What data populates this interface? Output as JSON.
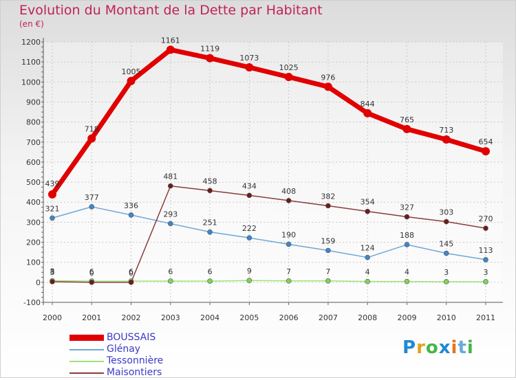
{
  "chart_data": {
    "type": "line",
    "title": "Evolution du Montant de la Dette par Habitant",
    "subtitle": "(en €)",
    "categories": [
      "2000",
      "2001",
      "2002",
      "2003",
      "2004",
      "2005",
      "2006",
      "2007",
      "2008",
      "2009",
      "2010",
      "2011"
    ],
    "ylim": [
      -100,
      1200
    ],
    "yticks": [
      -100,
      0,
      100,
      200,
      300,
      400,
      500,
      600,
      700,
      800,
      900,
      1000,
      1100,
      1200
    ],
    "grid": true,
    "series": [
      {
        "name": "BOUSSAIS",
        "color": "#e00000",
        "marker": "#e00000",
        "values": [
          439,
          718,
          1005,
          1161,
          1119,
          1073,
          1025,
          976,
          844,
          765,
          713,
          654
        ]
      },
      {
        "name": "Glénay",
        "color": "#6ea7d6",
        "marker": "#3e87c9",
        "values": [
          321,
          377,
          336,
          293,
          251,
          222,
          190,
          159,
          124,
          188,
          145,
          113
        ]
      },
      {
        "name": "Tessonnière",
        "color": "#9ee27a",
        "marker": "#7fd35a",
        "values": [
          8,
          6,
          6,
          6,
          6,
          9,
          7,
          7,
          4,
          4,
          3,
          3
        ]
      },
      {
        "name": "Maisontiers",
        "color": "#8b3a3a",
        "marker": "#6b1d1d",
        "values": [
          3,
          0,
          0,
          481,
          458,
          434,
          408,
          382,
          354,
          327,
          303,
          270
        ]
      }
    ]
  },
  "legend": [
    {
      "label": "BOUSSAIS",
      "color": "#e00000"
    },
    {
      "label": "Glénay",
      "color": "#6ea7d6"
    },
    {
      "label": "Tessonnière",
      "color": "#9ee27a"
    },
    {
      "label": "Maisontiers",
      "color": "#8b3a3a"
    }
  ],
  "logo": {
    "letters": [
      "P",
      "r",
      "o",
      "x",
      "i",
      "t",
      "i"
    ]
  }
}
